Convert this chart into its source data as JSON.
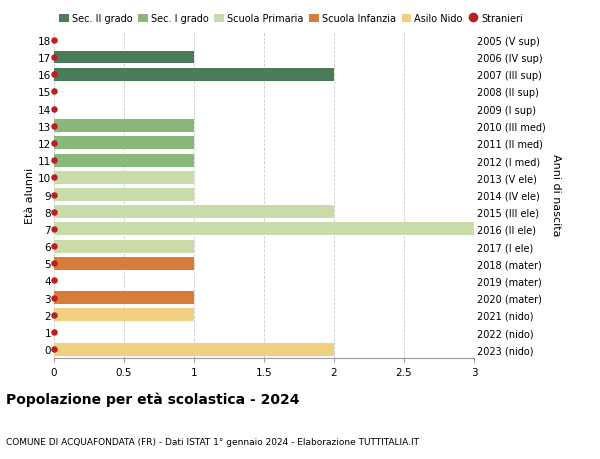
{
  "title": "Popolazione per età scolastica - 2024",
  "subtitle": "COMUNE DI ACQUAFONDATA (FR) - Dati ISTAT 1° gennaio 2024 - Elaborazione TUTTITALIA.IT",
  "ylabel_left": "Età alunni",
  "ylabel_right": "Anni di nascita",
  "xlim": [
    0,
    3.0
  ],
  "xticks": [
    0,
    0.5,
    1.0,
    1.5,
    2.0,
    2.5,
    3.0
  ],
  "age_labels": [
    "18",
    "17",
    "16",
    "15",
    "14",
    "13",
    "12",
    "11",
    "10",
    "9",
    "8",
    "7",
    "6",
    "5",
    "4",
    "3",
    "2",
    "1",
    "0"
  ],
  "right_labels": [
    "2005 (V sup)",
    "2006 (IV sup)",
    "2007 (III sup)",
    "2008 (II sup)",
    "2009 (I sup)",
    "2010 (III med)",
    "2011 (II med)",
    "2012 (I med)",
    "2013 (V ele)",
    "2014 (IV ele)",
    "2015 (III ele)",
    "2016 (II ele)",
    "2017 (I ele)",
    "2018 (mater)",
    "2019 (mater)",
    "2020 (mater)",
    "2021 (nido)",
    "2022 (nido)",
    "2023 (nido)"
  ],
  "bar_values": [
    0,
    1,
    2,
    0,
    0,
    1,
    1,
    1,
    1,
    1,
    2,
    3,
    1,
    1,
    0,
    1,
    1,
    0,
    2
  ],
  "bar_colors": [
    "#4a7c59",
    "#4a7c59",
    "#4a7c59",
    "#4a7c59",
    "#4a7c59",
    "#8ab87a",
    "#8ab87a",
    "#8ab87a",
    "#c8dba8",
    "#c8dba8",
    "#c8dba8",
    "#c8dba8",
    "#c8dba8",
    "#d97c3a",
    "#d97c3a",
    "#d97c3a",
    "#f0d080",
    "#f0d080",
    "#f0d080"
  ],
  "dot_color": "#bb2020",
  "legend_items": [
    {
      "label": "Sec. II grado",
      "color": "#4a7c59",
      "type": "patch"
    },
    {
      "label": "Sec. I grado",
      "color": "#8ab87a",
      "type": "patch"
    },
    {
      "label": "Scuola Primaria",
      "color": "#c8dba8",
      "type": "patch"
    },
    {
      "label": "Scuola Infanzia",
      "color": "#d97c3a",
      "type": "patch"
    },
    {
      "label": "Asilo Nido",
      "color": "#f0d080",
      "type": "patch"
    },
    {
      "label": "Stranieri",
      "color": "#bb2020",
      "type": "dot"
    }
  ],
  "background_color": "#ffffff",
  "grid_color": "#cccccc",
  "bar_height": 0.75,
  "dot_size": 22
}
